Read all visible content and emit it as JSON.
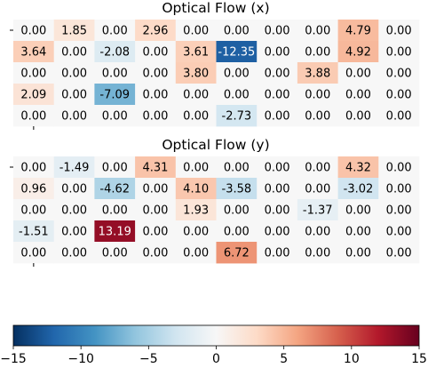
{
  "chart_data": [
    {
      "type": "heatmap",
      "title": "Optical Flow (x)",
      "values": [
        [
          0.0,
          1.85,
          0.0,
          2.96,
          0.0,
          0.0,
          0.0,
          0.0,
          4.79,
          0.0
        ],
        [
          3.64,
          0.0,
          -2.08,
          0.0,
          3.61,
          -12.35,
          0.0,
          0.0,
          4.92,
          0.0
        ],
        [
          0.0,
          0.0,
          0.0,
          0.0,
          3.8,
          0.0,
          0.0,
          3.88,
          0.0,
          0.0
        ],
        [
          2.09,
          0.0,
          -7.09,
          0.0,
          0.0,
          0.0,
          0.0,
          0.0,
          0.0,
          0.0
        ],
        [
          0.0,
          0.0,
          0.0,
          0.0,
          0.0,
          -2.73,
          0.0,
          0.0,
          0.0,
          0.0
        ]
      ],
      "labels": [
        [
          "0.00",
          "1.85",
          "0.00",
          "2.96",
          "0.00",
          "0.00",
          "0.00",
          "0.00",
          "4.79",
          "0.00"
        ],
        [
          "3.64",
          "0.00",
          "-2.08",
          "0.00",
          "3.61",
          "-12.35",
          "0.00",
          "0.00",
          "4.92",
          "0.00"
        ],
        [
          "0.00",
          "0.00",
          "0.00",
          "0.00",
          "3.80",
          "0.00",
          "0.00",
          "3.88",
          "0.00",
          "0.00"
        ],
        [
          "2.09",
          "0.00",
          "-7.09",
          "0.00",
          "0.00",
          "0.00",
          "0.00",
          "0.00",
          "0.00",
          "0.00"
        ],
        [
          "0.00",
          "0.00",
          "0.00",
          "0.00",
          "0.00",
          "-2.73",
          "0.00",
          "0.00",
          "0.00",
          "0.00"
        ]
      ]
    },
    {
      "type": "heatmap",
      "title": "Optical Flow (y)",
      "values": [
        [
          0.0,
          -1.49,
          0.0,
          4.31,
          0.0,
          0.0,
          0.0,
          0.0,
          4.32,
          0.0
        ],
        [
          0.96,
          0.0,
          -4.62,
          0.0,
          4.1,
          -3.58,
          0.0,
          0.0,
          -3.02,
          0.0
        ],
        [
          0.0,
          0.0,
          0.0,
          0.0,
          1.93,
          0.0,
          0.0,
          -1.37,
          0.0,
          0.0
        ],
        [
          -1.51,
          0.0,
          13.19,
          0.0,
          0.0,
          0.0,
          0.0,
          0.0,
          0.0,
          0.0
        ],
        [
          0.0,
          0.0,
          0.0,
          0.0,
          0.0,
          6.72,
          0.0,
          0.0,
          0.0,
          0.0
        ]
      ],
      "labels": [
        [
          "0.00",
          "-1.49",
          "0.00",
          "4.31",
          "0.00",
          "0.00",
          "0.00",
          "0.00",
          "4.32",
          "0.00"
        ],
        [
          "0.96",
          "0.00",
          "-4.62",
          "0.00",
          "4.10",
          "-3.58",
          "0.00",
          "0.00",
          "-3.02",
          "0.00"
        ],
        [
          "0.00",
          "0.00",
          "0.00",
          "0.00",
          "1.93",
          "0.00",
          "0.00",
          "-1.37",
          "0.00",
          "0.00"
        ],
        [
          "-1.51",
          "0.00",
          "13.19",
          "0.00",
          "0.00",
          "0.00",
          "0.00",
          "0.00",
          "0.00",
          "0.00"
        ],
        [
          "0.00",
          "0.00",
          "0.00",
          "0.00",
          "0.00",
          "6.72",
          "0.00",
          "0.00",
          "0.00",
          "0.00"
        ]
      ]
    }
  ],
  "colorbar": {
    "colormap": "RdBu_r",
    "range": [
      -15,
      15
    ],
    "ticks": [
      -15,
      -10,
      -5,
      0,
      5,
      10,
      15
    ],
    "tick_labels": [
      "−15",
      "−10",
      "−5",
      "0",
      "5",
      "10",
      "15"
    ]
  }
}
